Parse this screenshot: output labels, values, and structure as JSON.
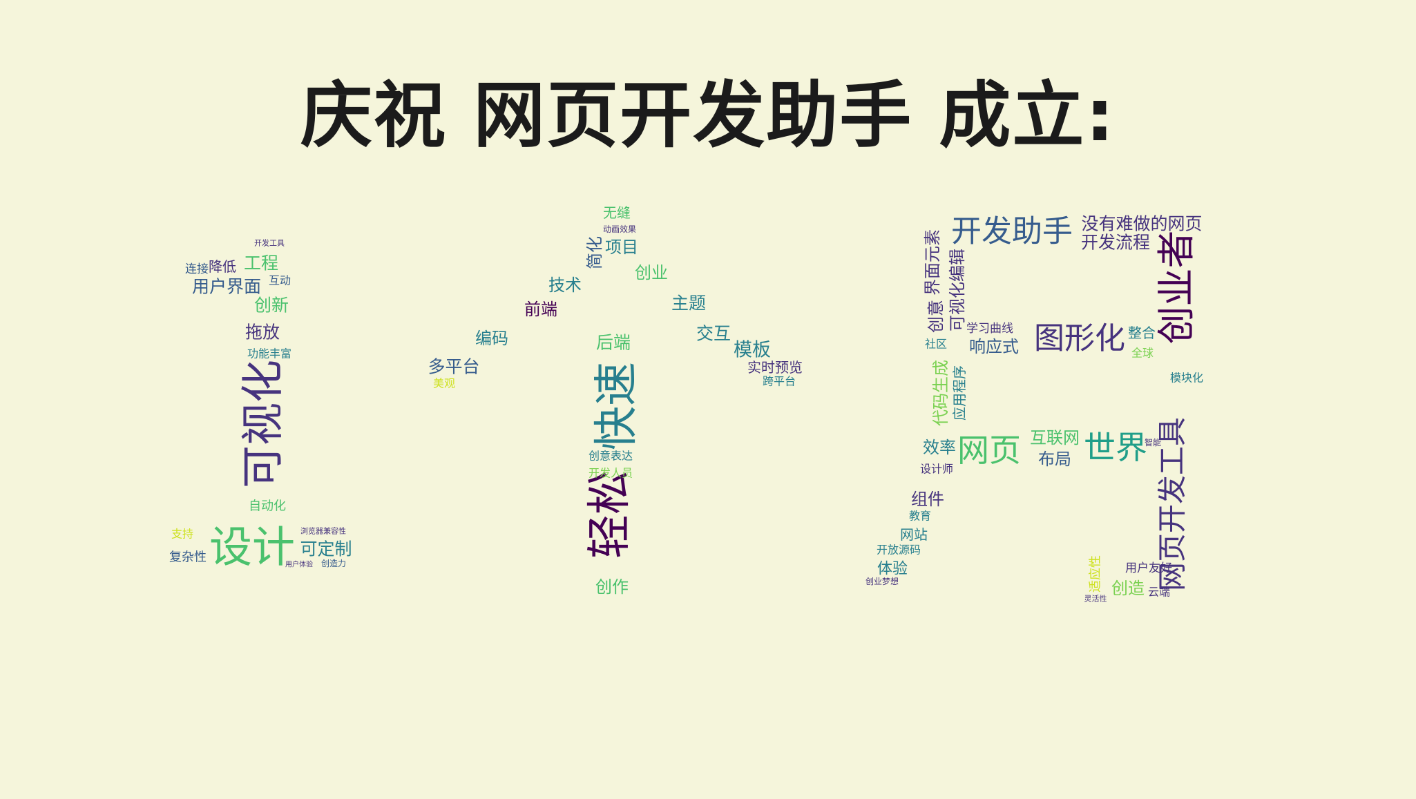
{
  "title": "庆祝 网页开发助手 成立:",
  "words": [
    {
      "t": "开发工具",
      "c": "#46337e"
    },
    {
      "t": "连接",
      "c": "#365c8d"
    },
    {
      "t": "降低",
      "c": "#46337e"
    },
    {
      "t": "工程",
      "c": "#4ac16d"
    },
    {
      "t": "互动",
      "c": "#365c8d"
    },
    {
      "t": "用户界面",
      "c": "#365c8d"
    },
    {
      "t": "创新",
      "c": "#4ac16d"
    },
    {
      "t": "拖放",
      "c": "#46337e"
    },
    {
      "t": "功能丰富",
      "c": "#277f8e"
    },
    {
      "t": "可视化",
      "c": "#46337e"
    },
    {
      "t": "自动化",
      "c": "#4ac16d"
    },
    {
      "t": "设计",
      "c": "#4ac16d"
    },
    {
      "t": "可定制",
      "c": "#277f8e"
    },
    {
      "t": "浏览器兼容性",
      "c": "#46337e"
    },
    {
      "t": "支持",
      "c": "#cde11d"
    },
    {
      "t": "复杂性",
      "c": "#365c8d"
    },
    {
      "t": "用户体验",
      "c": "#46337e"
    },
    {
      "t": "创造力",
      "c": "#365c8d"
    },
    {
      "t": "无缝",
      "c": "#4ac16d"
    },
    {
      "t": "动画效果",
      "c": "#46337e"
    },
    {
      "t": "简化",
      "c": "#365c8d"
    },
    {
      "t": "项目",
      "c": "#277f8e"
    },
    {
      "t": "创业",
      "c": "#4ac16d"
    },
    {
      "t": "技术",
      "c": "#277f8e"
    },
    {
      "t": "主题",
      "c": "#277f8e"
    },
    {
      "t": "前端",
      "c": "#440154"
    },
    {
      "t": "编码",
      "c": "#277f8e"
    },
    {
      "t": "后端",
      "c": "#4ac16d"
    },
    {
      "t": "交互",
      "c": "#277f8e"
    },
    {
      "t": "模板",
      "c": "#277f8e"
    },
    {
      "t": "多平台",
      "c": "#365c8d"
    },
    {
      "t": "实时预览",
      "c": "#46337e"
    },
    {
      "t": "跨平台",
      "c": "#277f8e"
    },
    {
      "t": "美观",
      "c": "#cde11d"
    },
    {
      "t": "快速",
      "c": "#277f8e"
    },
    {
      "t": "轻松",
      "c": "#440154"
    },
    {
      "t": "创意表达",
      "c": "#277f8e"
    },
    {
      "t": "开发人员",
      "c": "#7ad151"
    },
    {
      "t": "创作",
      "c": "#4ac16d"
    },
    {
      "t": "开发助手",
      "c": "#365c8d"
    },
    {
      "t": "没有难做的网页",
      "c": "#46337e"
    },
    {
      "t": "开发流程",
      "c": "#46337e"
    },
    {
      "t": "创业者",
      "c": "#440154"
    },
    {
      "t": "界面元素",
      "c": "#46337e"
    },
    {
      "t": "可视化编辑",
      "c": "#46337e"
    },
    {
      "t": "创意",
      "c": "#46337e"
    },
    {
      "t": "学习曲线",
      "c": "#46337e"
    },
    {
      "t": "图形化",
      "c": "#46337e"
    },
    {
      "t": "整合",
      "c": "#277f8e"
    },
    {
      "t": "响应式",
      "c": "#365c8d"
    },
    {
      "t": "社区",
      "c": "#277f8e"
    },
    {
      "t": "全球",
      "c": "#7ad151"
    },
    {
      "t": "模块化",
      "c": "#277f8e"
    },
    {
      "t": "代码生成",
      "c": "#7ad151"
    },
    {
      "t": "应用程序",
      "c": "#277f8e"
    },
    {
      "t": "效率",
      "c": "#277f8e"
    },
    {
      "t": "网页",
      "c": "#4ac16d"
    },
    {
      "t": "互联网",
      "c": "#4ac16d"
    },
    {
      "t": "世界",
      "c": "#1f9e89"
    },
    {
      "t": "布局",
      "c": "#365c8d"
    },
    {
      "t": "智能",
      "c": "#46337e"
    },
    {
      "t": "网页开发工具",
      "c": "#46337e"
    },
    {
      "t": "设计师",
      "c": "#46337e"
    },
    {
      "t": "组件",
      "c": "#46337e"
    },
    {
      "t": "教育",
      "c": "#277f8e"
    },
    {
      "t": "网站",
      "c": "#277f8e"
    },
    {
      "t": "开放源码",
      "c": "#277f8e"
    },
    {
      "t": "体验",
      "c": "#277f8e"
    },
    {
      "t": "创业梦想",
      "c": "#46337e"
    },
    {
      "t": "用户友好",
      "c": "#46337e"
    },
    {
      "t": "适应性",
      "c": "#cde11d"
    },
    {
      "t": "创造",
      "c": "#7ad151"
    },
    {
      "t": "云端",
      "c": "#46337e"
    },
    {
      "t": "灵活性",
      "c": "#46337e"
    }
  ]
}
